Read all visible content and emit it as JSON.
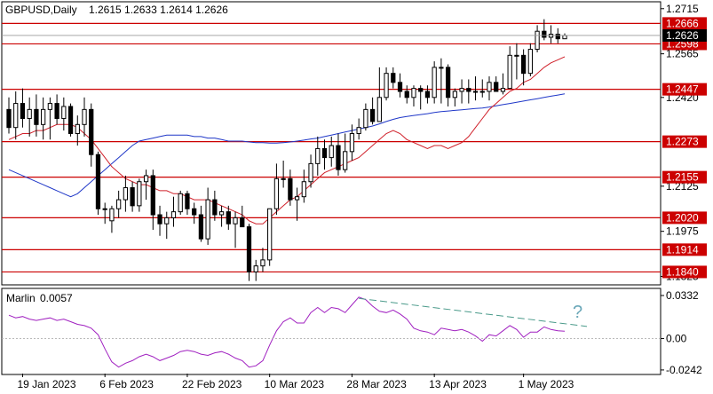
{
  "header": {
    "symbol": "GBPUSD,Daily",
    "ohlc": "1.2615 1.2633 1.2614 1.2626"
  },
  "indicator": {
    "name": "Marlin",
    "value": "0.0057",
    "axis_ticks": [
      "0.0332",
      "0.00",
      "-0.0242"
    ],
    "question_mark": "?"
  },
  "price_axis_ticks": [
    "1.2715",
    "1.2565",
    "1.2420",
    "1.2125",
    "1.1975",
    "1.1825"
  ],
  "current_price_label": "1.2626",
  "date_labels": [
    "19 Jan 2023",
    "6 Feb 2023",
    "22 Feb 2023",
    "10 Mar 2023",
    "28 Mar 2023",
    "13 Apr 2023",
    "1 May 2023"
  ],
  "colors": {
    "bull_candle": "#ffffff",
    "bear_candle": "#000000",
    "fast_ma": "#d0202a",
    "slow_ma": "#1f37c8",
    "level_line": "#cc0000",
    "level_label_bg": "#cc0000",
    "marlin": "#a020c0",
    "trendline": "#4a9a8a",
    "question_mark": "#6aa7b8"
  },
  "chart_data": [
    {
      "type": "candlestick",
      "title": "GBPUSD,Daily",
      "ylim": [
        1.18,
        1.2735
      ],
      "y_ticks": [
        1.2715,
        1.2565,
        1.242,
        1.2125,
        1.1975,
        1.1825
      ],
      "levels": [
        1.2666,
        1.2598,
        1.2447,
        1.2273,
        1.2155,
        1.202,
        1.1914,
        1.184
      ],
      "level_labels": [
        "1.2666",
        "1.2598",
        "1.2447",
        "1.2273",
        "1.2155",
        "1.2020",
        "1.1914",
        "1.1840"
      ],
      "current_price": 1.2626,
      "x": [
        "2023-01-17",
        "2023-01-18",
        "2023-01-19",
        "2023-01-20",
        "2023-01-23",
        "2023-01-24",
        "2023-01-25",
        "2023-01-26",
        "2023-01-27",
        "2023-01-30",
        "2023-01-31",
        "2023-02-01",
        "2023-02-02",
        "2023-02-03",
        "2023-02-06",
        "2023-02-07",
        "2023-02-08",
        "2023-02-09",
        "2023-02-10",
        "2023-02-13",
        "2023-02-14",
        "2023-02-15",
        "2023-02-16",
        "2023-02-17",
        "2023-02-20",
        "2023-02-21",
        "2023-02-22",
        "2023-02-23",
        "2023-02-24",
        "2023-02-27",
        "2023-02-28",
        "2023-03-01",
        "2023-03-02",
        "2023-03-03",
        "2023-03-06",
        "2023-03-07",
        "2023-03-08",
        "2023-03-09",
        "2023-03-10",
        "2023-03-13",
        "2023-03-14",
        "2023-03-15",
        "2023-03-16",
        "2023-03-17",
        "2023-03-20",
        "2023-03-21",
        "2023-03-22",
        "2023-03-23",
        "2023-03-24",
        "2023-03-27",
        "2023-03-28",
        "2023-03-29",
        "2023-03-30",
        "2023-03-31",
        "2023-04-03",
        "2023-04-04",
        "2023-04-05",
        "2023-04-06",
        "2023-04-07",
        "2023-04-10",
        "2023-04-11",
        "2023-04-12",
        "2023-04-13",
        "2023-04-14",
        "2023-04-17",
        "2023-04-18",
        "2023-04-19",
        "2023-04-20",
        "2023-04-21",
        "2023-04-24",
        "2023-04-25",
        "2023-04-26",
        "2023-04-27",
        "2023-04-28",
        "2023-05-01",
        "2023-05-02",
        "2023-05-03",
        "2023-05-04",
        "2023-05-05",
        "2023-05-08",
        "2023-05-09",
        "2023-05-10"
      ],
      "open": [
        1.238,
        1.232,
        1.24,
        1.235,
        1.238,
        1.233,
        1.238,
        1.24,
        1.235,
        1.239,
        1.23,
        1.233,
        1.238,
        1.223,
        1.205,
        1.201,
        1.205,
        1.208,
        1.212,
        1.206,
        1.214,
        1.216,
        1.203,
        1.2,
        1.202,
        1.204,
        1.21,
        1.205,
        1.203,
        1.195,
        1.208,
        1.203,
        1.204,
        1.2,
        1.202,
        1.199,
        1.184,
        1.186,
        1.188,
        1.205,
        1.215,
        1.215,
        1.208,
        1.209,
        1.214,
        1.22,
        1.225,
        1.222,
        1.226,
        1.218,
        1.224,
        1.23,
        1.232,
        1.238,
        1.234,
        1.242,
        1.25,
        1.247,
        1.244,
        1.242,
        1.245,
        1.244,
        1.242,
        1.252,
        1.252,
        1.242,
        1.244,
        1.245,
        1.244,
        1.244,
        1.244,
        1.247,
        1.244,
        1.245,
        1.256,
        1.256,
        1.25,
        1.258,
        1.264,
        1.262,
        1.263,
        1.2615
      ],
      "high": [
        1.242,
        1.244,
        1.245,
        1.242,
        1.243,
        1.242,
        1.242,
        1.243,
        1.242,
        1.24,
        1.236,
        1.242,
        1.24,
        1.224,
        1.207,
        1.206,
        1.211,
        1.216,
        1.214,
        1.215,
        1.218,
        1.218,
        1.206,
        1.204,
        1.209,
        1.211,
        1.211,
        1.207,
        1.206,
        1.212,
        1.211,
        1.206,
        1.206,
        1.204,
        1.206,
        1.2,
        1.188,
        1.192,
        1.205,
        1.22,
        1.221,
        1.218,
        1.212,
        1.218,
        1.223,
        1.229,
        1.228,
        1.229,
        1.23,
        1.23,
        1.233,
        1.235,
        1.24,
        1.242,
        1.252,
        1.252,
        1.252,
        1.25,
        1.246,
        1.246,
        1.246,
        1.246,
        1.254,
        1.255,
        1.253,
        1.245,
        1.248,
        1.248,
        1.249,
        1.248,
        1.249,
        1.249,
        1.25,
        1.259,
        1.26,
        1.258,
        1.26,
        1.266,
        1.268,
        1.266,
        1.265,
        1.2633
      ],
      "low": [
        1.23,
        1.228,
        1.232,
        1.229,
        1.229,
        1.228,
        1.228,
        1.233,
        1.231,
        1.229,
        1.226,
        1.229,
        1.219,
        1.203,
        1.2,
        1.197,
        1.202,
        1.204,
        1.204,
        1.204,
        1.208,
        1.198,
        1.196,
        1.195,
        1.199,
        1.203,
        1.203,
        1.2,
        1.194,
        1.193,
        1.201,
        1.199,
        1.198,
        1.192,
        1.199,
        1.181,
        1.181,
        1.184,
        1.186,
        1.203,
        1.212,
        1.206,
        1.201,
        1.207,
        1.212,
        1.216,
        1.218,
        1.219,
        1.216,
        1.217,
        1.221,
        1.228,
        1.231,
        1.233,
        1.234,
        1.241,
        1.245,
        1.242,
        1.24,
        1.239,
        1.238,
        1.24,
        1.24,
        1.24,
        1.239,
        1.239,
        1.24,
        1.24,
        1.241,
        1.242,
        1.241,
        1.244,
        1.243,
        1.245,
        1.248,
        1.246,
        1.249,
        1.257,
        1.261,
        1.26,
        1.26,
        1.2614
      ],
      "close": [
        1.232,
        1.24,
        1.235,
        1.238,
        1.233,
        1.238,
        1.24,
        1.235,
        1.239,
        1.23,
        1.233,
        1.238,
        1.223,
        1.205,
        1.205,
        1.205,
        1.208,
        1.212,
        1.206,
        1.214,
        1.216,
        1.203,
        1.2,
        1.202,
        1.204,
        1.21,
        1.205,
        1.203,
        1.195,
        1.208,
        1.203,
        1.204,
        1.2,
        1.202,
        1.199,
        1.184,
        1.186,
        1.188,
        1.205,
        1.215,
        1.215,
        1.208,
        1.209,
        1.214,
        1.22,
        1.225,
        1.222,
        1.226,
        1.218,
        1.224,
        1.23,
        1.232,
        1.238,
        1.234,
        1.242,
        1.25,
        1.247,
        1.244,
        1.242,
        1.245,
        1.244,
        1.242,
        1.252,
        1.252,
        1.242,
        1.244,
        1.245,
        1.244,
        1.244,
        1.244,
        1.247,
        1.244,
        1.245,
        1.256,
        1.256,
        1.25,
        1.258,
        1.264,
        1.262,
        1.263,
        1.2615,
        1.2626
      ],
      "ma_fast": [
        1.228,
        1.229,
        1.23,
        1.23,
        1.231,
        1.231,
        1.232,
        1.233,
        1.233,
        1.233,
        1.232,
        1.23,
        1.228,
        1.225,
        1.222,
        1.219,
        1.217,
        1.215,
        1.214,
        1.213,
        1.213,
        1.212,
        1.211,
        1.211,
        1.21,
        1.21,
        1.209,
        1.208,
        1.208,
        1.208,
        1.207,
        1.206,
        1.205,
        1.204,
        1.203,
        1.201,
        1.2,
        1.2,
        1.202,
        1.204,
        1.206,
        1.208,
        1.209,
        1.211,
        1.213,
        1.215,
        1.217,
        1.218,
        1.219,
        1.22,
        1.221,
        1.222,
        1.224,
        1.226,
        1.228,
        1.23,
        1.231,
        1.23,
        1.228,
        1.227,
        1.226,
        1.225,
        1.226,
        1.226,
        1.225,
        1.226,
        1.227,
        1.229,
        1.232,
        1.235,
        1.238,
        1.24,
        1.242,
        1.244,
        1.245,
        1.247,
        1.248,
        1.25,
        1.252,
        1.2535,
        1.2545,
        1.2555
      ],
      "ma_slow": [
        1.218,
        1.217,
        1.216,
        1.215,
        1.214,
        1.213,
        1.212,
        1.211,
        1.21,
        1.209,
        1.21,
        1.212,
        1.214,
        1.216,
        1.218,
        1.22,
        1.222,
        1.224,
        1.226,
        1.2275,
        1.228,
        1.2285,
        1.229,
        1.2295,
        1.2295,
        1.2295,
        1.2295,
        1.229,
        1.229,
        1.2285,
        1.2285,
        1.228,
        1.2275,
        1.2275,
        1.2275,
        1.2272,
        1.227,
        1.227,
        1.2268,
        1.2268,
        1.227,
        1.2272,
        1.2275,
        1.2278,
        1.2282,
        1.2285,
        1.229,
        1.2295,
        1.23,
        1.2305,
        1.231,
        1.2315,
        1.232,
        1.2325,
        1.2332,
        1.234,
        1.2347,
        1.2353,
        1.2357,
        1.236,
        1.2363,
        1.2366,
        1.237,
        1.2373,
        1.2375,
        1.2377,
        1.2379,
        1.2381,
        1.2383,
        1.2385,
        1.2388,
        1.2392,
        1.2396,
        1.24,
        1.2404,
        1.2408,
        1.2412,
        1.2416,
        1.242,
        1.2424,
        1.2428,
        1.2432
      ]
    },
    {
      "type": "line",
      "title": "Marlin 0.0057",
      "ylim": [
        -0.027,
        0.038
      ],
      "y_ticks": [
        0.0332,
        0.0,
        -0.0242
      ],
      "series": [
        {
          "name": "Marlin",
          "values": [
            0.018,
            0.016,
            0.017,
            0.015,
            0.014,
            0.015,
            0.016,
            0.014,
            0.015,
            0.013,
            0.011,
            0.01,
            0.008,
            0.003,
            -0.008,
            -0.018,
            -0.022,
            -0.019,
            -0.017,
            -0.014,
            -0.012,
            -0.014,
            -0.017,
            -0.015,
            -0.013,
            -0.01,
            -0.009,
            -0.01,
            -0.012,
            -0.013,
            -0.011,
            -0.01,
            -0.012,
            -0.015,
            -0.017,
            -0.022,
            -0.021,
            -0.017,
            -0.005,
            0.006,
            0.013,
            0.016,
            0.012,
            0.012,
            0.02,
            0.024,
            0.02,
            0.024,
            0.023,
            0.02,
            0.026,
            0.032,
            0.03,
            0.025,
            0.021,
            0.02,
            0.022,
            0.019,
            0.015,
            0.008,
            0.006,
            0.005,
            0.003,
            0.008,
            0.007,
            0.006,
            0.007,
            0.005,
            0.002,
            -0.002,
            0.003,
            0.002,
            0.006,
            0.01,
            0.007,
            0.001,
            0.005,
            0.005,
            0.009,
            0.007,
            0.006,
            0.0057
          ]
        }
      ],
      "trendline": {
        "x": [
          "2023-03-29",
          "2023-05-10"
        ],
        "y": [
          0.031,
          0.008
        ]
      }
    }
  ]
}
